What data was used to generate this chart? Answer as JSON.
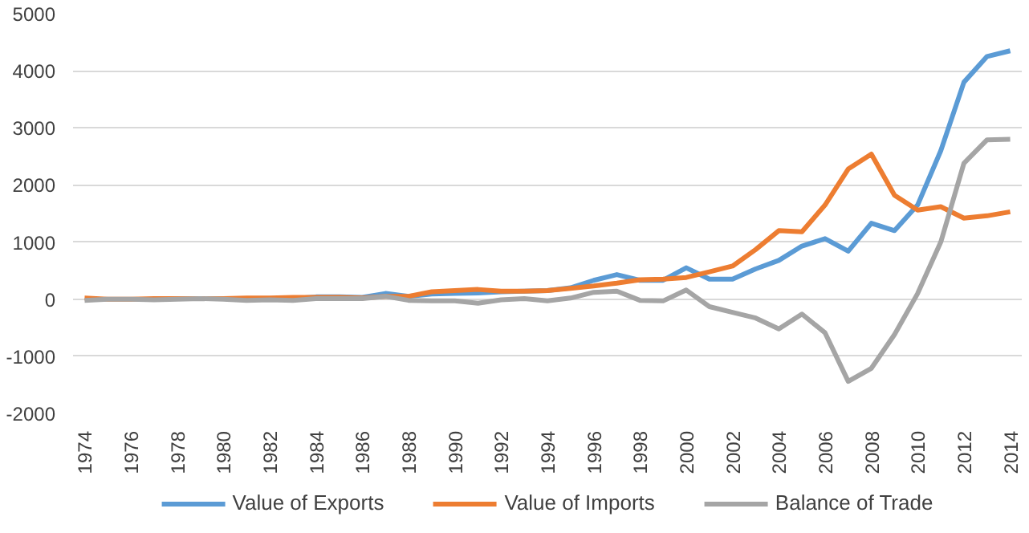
{
  "chart_data": {
    "type": "line",
    "categories": [
      "1974",
      null,
      "1976",
      null,
      "1978",
      null,
      "1980",
      null,
      "1982",
      null,
      "1984",
      null,
      "1986",
      null,
      "1988",
      null,
      "1990",
      null,
      "1992",
      null,
      "1994",
      null,
      "1996",
      null,
      "1998",
      null,
      "2000",
      null,
      "2002",
      null,
      "2004",
      null,
      "2006",
      null,
      "2008",
      null,
      "2010",
      null,
      "2012",
      null,
      "2014"
    ],
    "series": [
      {
        "name": "Value of Exports",
        "color": "#5b9bd5",
        "values": [
          null,
          null,
          null,
          null,
          null,
          null,
          null,
          null,
          null,
          10,
          40,
          40,
          30,
          100,
          50,
          90,
          100,
          110,
          130,
          140,
          150,
          200,
          330,
          430,
          330,
          330,
          550,
          350,
          350,
          530,
          680,
          930,
          1060,
          840,
          1330,
          1200,
          1650,
          2600,
          3800,
          4250,
          4350
        ]
      },
      {
        "name": "Value of Imports",
        "color": "#ed7d31",
        "values": [
          20,
          0,
          0,
          10,
          10,
          10,
          10,
          20,
          20,
          30,
          30,
          30,
          20,
          50,
          50,
          130,
          150,
          170,
          140,
          140,
          150,
          190,
          230,
          280,
          340,
          350,
          380,
          480,
          580,
          870,
          1200,
          1180,
          1650,
          2280,
          2540,
          1820,
          1560,
          1620,
          1420,
          1460,
          1530
        ]
      },
      {
        "name": "Balance of Trade",
        "color": "#a5a5a5",
        "values": [
          -20,
          0,
          0,
          -10,
          0,
          10,
          0,
          -20,
          -10,
          -20,
          10,
          10,
          10,
          50,
          -20,
          -30,
          -30,
          -70,
          -10,
          10,
          -30,
          20,
          120,
          140,
          -20,
          -30,
          160,
          -130,
          -230,
          -330,
          -520,
          -260,
          -590,
          -1440,
          -1210,
          -620,
          100,
          1000,
          2380,
          2790,
          2800
        ]
      }
    ],
    "ylim": [
      -2000,
      5000
    ],
    "yticks": [
      -2000,
      -1000,
      0,
      1000,
      2000,
      3000,
      4000,
      5000
    ],
    "grid": "y",
    "legend": "bottom",
    "line_style": "solid",
    "marker": "none"
  }
}
